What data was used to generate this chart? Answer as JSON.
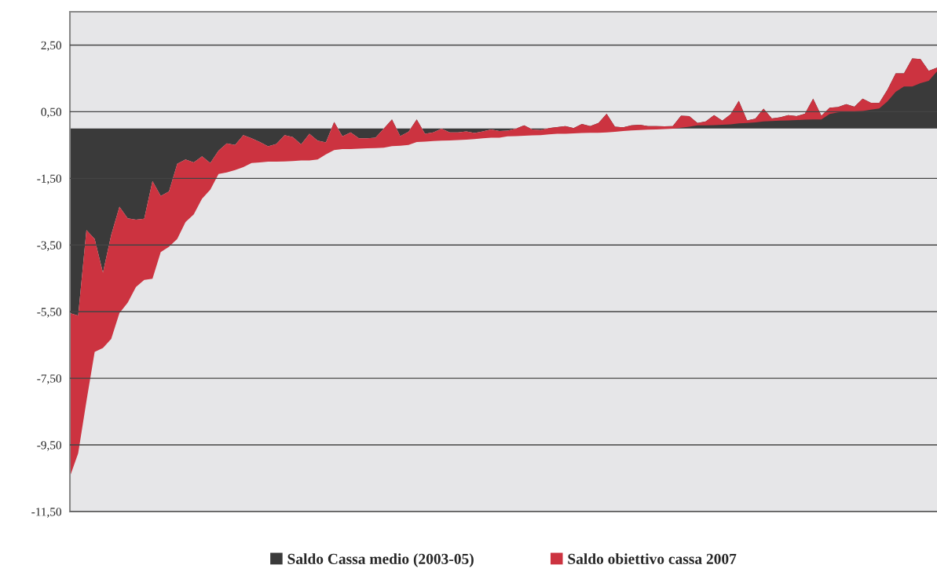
{
  "chart_data": {
    "type": "area",
    "stacked": true,
    "categories": [
      null,
      null,
      null,
      null,
      null,
      null,
      null,
      null,
      null,
      null,
      null,
      null,
      null,
      null,
      null,
      null,
      null,
      null,
      null,
      null,
      null,
      null,
      null,
      null,
      null,
      null,
      null,
      null,
      null,
      null,
      null,
      null,
      null,
      null,
      null,
      null,
      null,
      null,
      null,
      null,
      null,
      null,
      null,
      null,
      null,
      null,
      null,
      null,
      null,
      null,
      null,
      null,
      null,
      null,
      null,
      null,
      null,
      null,
      null,
      null,
      null,
      null,
      null,
      null,
      null,
      null,
      null,
      null,
      null,
      null,
      null,
      null,
      null,
      null,
      null,
      null,
      null,
      null,
      null,
      null,
      null,
      null,
      null,
      null,
      null,
      null,
      null,
      null,
      null,
      null,
      null,
      null,
      null,
      null,
      null,
      null,
      null,
      null,
      null,
      null,
      null,
      null,
      null,
      null,
      null,
      null
    ],
    "series": [
      {
        "name": "Saldo Cassa medio (2003-05)",
        "color": "#3a3a3a",
        "values": [
          -5.54,
          -5.62,
          -3.05,
          -3.32,
          -4.33,
          -3.2,
          -2.35,
          -2.7,
          -2.74,
          -2.71,
          -1.58,
          -2.03,
          -1.89,
          -1.06,
          -0.93,
          -1.02,
          -0.84,
          -1.04,
          -0.67,
          -0.45,
          -0.5,
          -0.2,
          -0.3,
          -0.41,
          -0.54,
          -0.47,
          -0.2,
          -0.26,
          -0.48,
          -0.16,
          -0.37,
          -0.42,
          0.19,
          -0.24,
          -0.12,
          -0.3,
          -0.3,
          -0.28,
          -0.01,
          0.27,
          -0.23,
          -0.1,
          0.27,
          -0.16,
          -0.12,
          -0.01,
          -0.12,
          -0.12,
          -0.09,
          -0.14,
          -0.09,
          -0.03,
          -0.08,
          -0.07,
          -0.01,
          0.09,
          -0.03,
          -0.05,
          0.01,
          0.04,
          0.07,
          0.01,
          0.13,
          0.07,
          0.16,
          0.44,
          0.05,
          0.03,
          0.09,
          0.11,
          0.07,
          0.07,
          0.06,
          0.07,
          0.38,
          0.37,
          0.16,
          0.21,
          0.4,
          0.23,
          0.42,
          0.83,
          0.24,
          0.29,
          0.59,
          0.3,
          0.33,
          0.4,
          0.37,
          0.44,
          0.89,
          0.38,
          0.62,
          0.64,
          0.73,
          0.65,
          0.89,
          0.77,
          0.76,
          1.16,
          1.65,
          1.65,
          2.1,
          2.08,
          1.73,
          1.82
        ]
      },
      {
        "name": "Saldo obiettivo cassa 2007",
        "color": "#cc3340",
        "values": [
          -4.91,
          -4.13,
          -5.14,
          -3.39,
          -2.26,
          -3.12,
          -3.19,
          -2.53,
          -2.02,
          -1.84,
          -2.93,
          -1.68,
          -1.66,
          -2.26,
          -1.88,
          -1.56,
          -1.27,
          -0.8,
          -0.7,
          -0.87,
          -0.75,
          -0.96,
          -0.74,
          -0.61,
          -0.46,
          -0.53,
          -0.79,
          -0.72,
          -0.48,
          -0.8,
          -0.56,
          -0.36,
          -0.84,
          -0.38,
          -0.5,
          -0.31,
          -0.3,
          -0.31,
          -0.57,
          -0.8,
          -0.29,
          -0.4,
          -0.68,
          -0.24,
          -0.26,
          -0.36,
          -0.24,
          -0.23,
          -0.25,
          -0.18,
          -0.21,
          -0.25,
          -0.2,
          -0.17,
          -0.22,
          -0.31,
          -0.18,
          -0.15,
          -0.19,
          -0.2,
          -0.23,
          -0.16,
          -0.27,
          -0.2,
          -0.29,
          -0.56,
          -0.15,
          -0.11,
          -0.15,
          -0.16,
          -0.11,
          -0.1,
          -0.08,
          -0.08,
          -0.36,
          -0.32,
          -0.07,
          -0.12,
          -0.3,
          -0.12,
          -0.3,
          -0.68,
          -0.08,
          -0.11,
          -0.38,
          -0.08,
          -0.1,
          -0.16,
          -0.12,
          -0.18,
          -0.62,
          -0.11,
          -0.19,
          -0.16,
          -0.23,
          -0.14,
          -0.37,
          -0.21,
          -0.16,
          -0.35,
          -0.55,
          -0.39,
          -0.84,
          -0.72,
          -0.3,
          -0.11
        ]
      }
    ],
    "ylim": [
      -11.5,
      3.5
    ],
    "yticks": [
      {
        "value": -11.5,
        "label": "-11,50"
      },
      {
        "value": -9.5,
        "label": "-9,50"
      },
      {
        "value": -7.5,
        "label": "-7,50"
      },
      {
        "value": -5.5,
        "label": "-5,50"
      },
      {
        "value": -3.5,
        "label": "-3,50"
      },
      {
        "value": -1.5,
        "label": "-1,50"
      },
      {
        "value": 0.5,
        "label": "0,50"
      },
      {
        "value": 2.5,
        "label": "2,50"
      }
    ],
    "grid": "y",
    "legend": "bottom",
    "tick_labels": "y"
  }
}
